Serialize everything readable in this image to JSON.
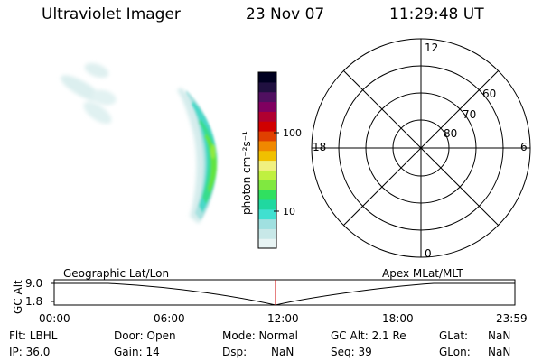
{
  "header": {
    "instrument": "Ultraviolet Imager",
    "date": "23 Nov 07",
    "time": "11:29:48 UT"
  },
  "colorbar": {
    "label": "photon cm⁻²s⁻¹",
    "ticks": [
      {
        "label": "100",
        "value": 100
      },
      {
        "label": "10",
        "value": 10
      }
    ],
    "scale": "log",
    "colors": [
      "#e8f4f4",
      "#c8e8e8",
      "#a0e0e0",
      "#40e0d0",
      "#20d8a0",
      "#30e060",
      "#80e840",
      "#c0f040",
      "#f0f080",
      "#f0c000",
      "#f08800",
      "#e04000",
      "#d00000",
      "#b00030",
      "#800060",
      "#501060",
      "#201040",
      "#000020"
    ]
  },
  "polar_plot": {
    "mlt_labels": {
      "top": "12",
      "right": "6",
      "bottom": "0",
      "left": "18"
    },
    "lat_labels": [
      "60",
      "70",
      "80"
    ]
  },
  "timeline": {
    "left_title": "Geographic Lat/Lon",
    "right_title": "Apex MLat/MLT",
    "ylabel": "GC Alt",
    "y_ticks": [
      "9.0",
      "1.8"
    ],
    "x_ticks": [
      "00:00",
      "06:00",
      "12:00",
      "18:00",
      "23:59"
    ],
    "marker_color": "#cc0000"
  },
  "info": {
    "flt": "Flt: LBHL",
    "ip": "IP: 36.0",
    "door": "Door: Open",
    "gain": "Gain: 14",
    "mode": "Mode: Normal",
    "dsp_label": "Dsp:",
    "dsp_value": "NaN",
    "gcalt": "GC Alt: 2.1 Re",
    "seq": "Seq: 39",
    "glat_label": "GLat:",
    "glat_value": "NaN",
    "glon_label": "GLon:",
    "glon_value": "NaN"
  }
}
